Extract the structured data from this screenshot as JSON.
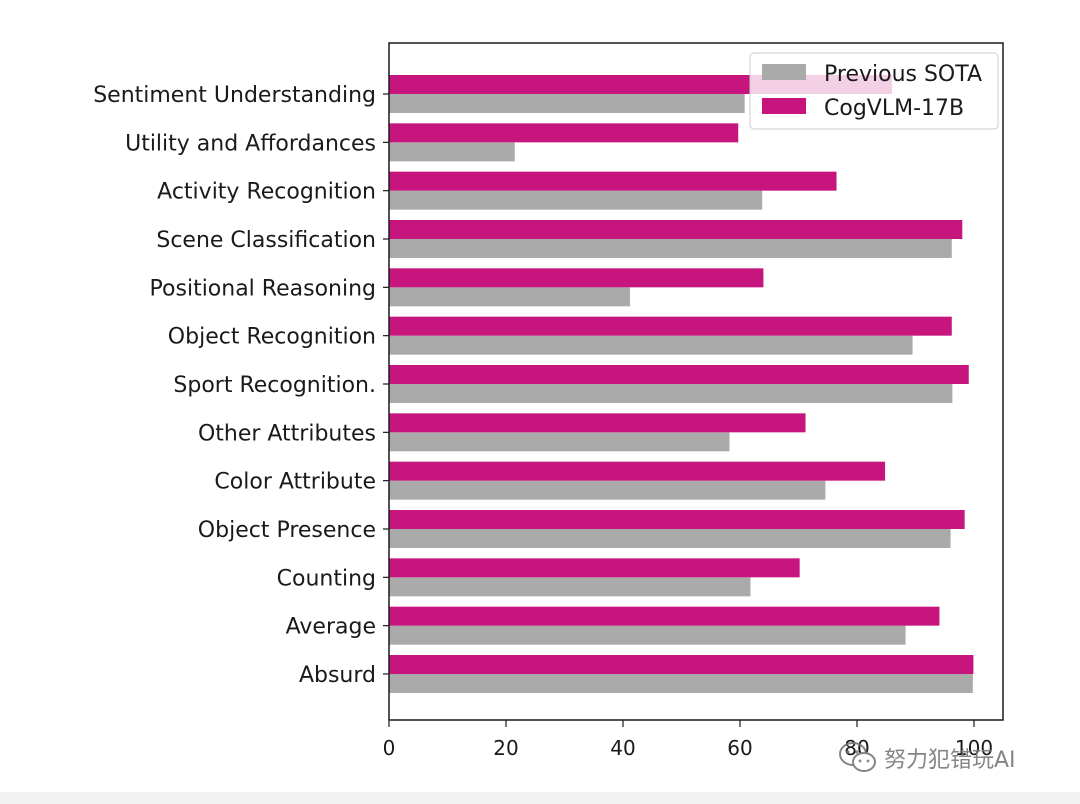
{
  "chart_data": {
    "type": "bar",
    "orientation": "horizontal",
    "categories": [
      "Sentiment Understanding",
      "Utility and Affordances",
      "Activity Recognition",
      "Scene Classification",
      "Positional Reasoning",
      "Object Recognition",
      "Sport Recognition.",
      "Other Attributes",
      "Color Attribute",
      "Object Presence",
      "Counting",
      "Average",
      "Absurd"
    ],
    "series": [
      {
        "name": "Previous SOTA",
        "color": "#aaaaaa",
        "values": [
          60.8,
          21.5,
          63.8,
          96.2,
          41.2,
          89.5,
          96.3,
          58.2,
          74.6,
          96.0,
          61.8,
          88.3,
          99.8
        ]
      },
      {
        "name": "CogVLM-17B",
        "color": "#c7157e",
        "values": [
          86.0,
          59.7,
          76.5,
          98.0,
          64.0,
          96.2,
          99.1,
          71.2,
          84.8,
          98.4,
          70.2,
          94.1,
          99.9
        ]
      }
    ],
    "xticks": [
      0,
      20,
      40,
      60,
      80,
      100
    ],
    "xlim": [
      0,
      105
    ],
    "title": "",
    "xlabel": "",
    "ylabel": "",
    "legend_position": "top-right"
  },
  "watermark": {
    "text": "努力犯错玩AI",
    "icon": "wechat-icon"
  },
  "colors": {
    "axis": "#1a1a1a",
    "background": "#ffffff"
  }
}
